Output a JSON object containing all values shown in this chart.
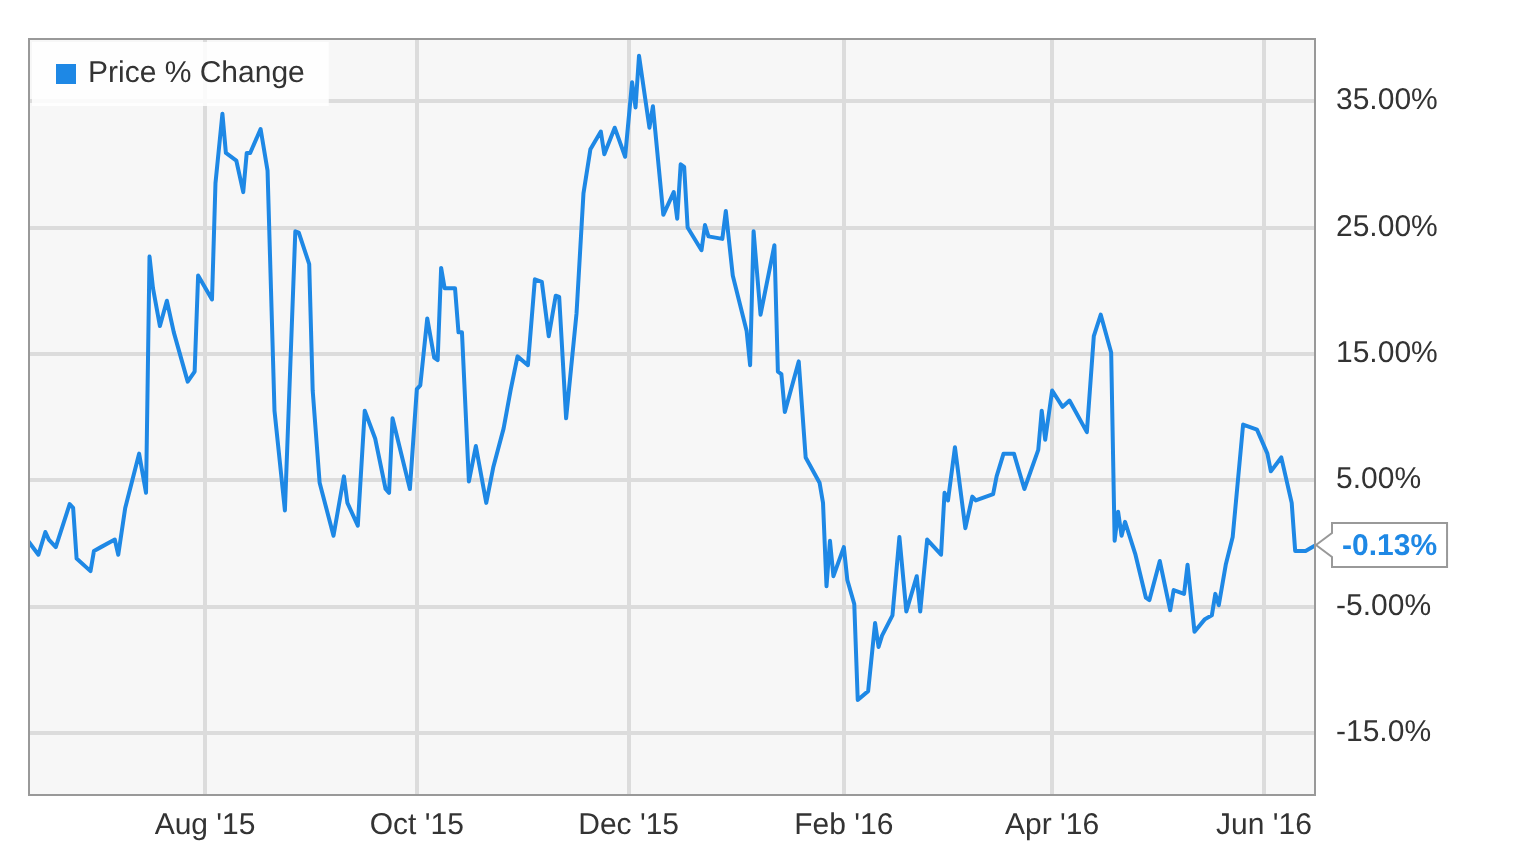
{
  "chart_data": {
    "type": "line",
    "x": [
      "2015-06-11",
      "2015-06-14",
      "2015-06-16",
      "2015-06-17",
      "2015-06-19",
      "2015-06-23",
      "2015-06-24",
      "2015-06-25",
      "2015-06-29",
      "2015-06-30",
      "2015-07-02",
      "2015-07-06",
      "2015-07-07",
      "2015-07-09",
      "2015-07-13",
      "2015-07-15",
      "2015-07-16",
      "2015-07-17",
      "2015-07-19",
      "2015-07-21",
      "2015-07-23",
      "2015-07-27",
      "2015-07-29",
      "2015-07-30",
      "2015-08-03",
      "2015-08-04",
      "2015-08-06",
      "2015-08-07",
      "2015-08-10",
      "2015-08-12",
      "2015-08-13",
      "2015-08-14",
      "2015-08-17",
      "2015-08-19",
      "2015-08-21",
      "2015-08-24",
      "2015-08-27",
      "2015-08-28",
      "2015-08-31",
      "2015-09-01",
      "2015-09-03",
      "2015-09-07",
      "2015-09-10",
      "2015-09-11",
      "2015-09-14",
      "2015-09-16",
      "2015-09-19",
      "2015-09-22",
      "2015-09-23",
      "2015-09-24",
      "2015-09-29",
      "2015-10-01",
      "2015-10-02",
      "2015-10-04",
      "2015-10-06",
      "2015-10-07",
      "2015-10-08",
      "2015-10-09",
      "2015-10-12",
      "2015-10-13",
      "2015-10-14",
      "2015-10-16",
      "2015-10-18",
      "2015-10-21",
      "2015-10-23",
      "2015-10-26",
      "2015-10-28",
      "2015-10-30",
      "2015-11-02",
      "2015-11-04",
      "2015-11-06",
      "2015-11-08",
      "2015-11-10",
      "2015-11-11",
      "2015-11-13",
      "2015-11-16",
      "2015-11-18",
      "2015-11-20",
      "2015-11-23",
      "2015-11-24",
      "2015-11-27",
      "2015-11-30",
      "2015-12-02",
      "2015-12-03",
      "2015-12-04",
      "2015-12-07",
      "2015-12-08",
      "2015-12-11",
      "2015-12-14",
      "2015-12-15",
      "2015-12-16",
      "2015-12-17",
      "2015-12-18",
      "2015-12-22",
      "2015-12-23",
      "2015-12-24",
      "2015-12-28",
      "2015-12-29",
      "2015-12-31",
      "2016-01-04",
      "2016-01-05",
      "2016-01-06",
      "2016-01-08",
      "2016-01-12",
      "2016-01-13",
      "2016-01-14",
      "2016-01-15",
      "2016-01-19",
      "2016-01-21",
      "2016-01-25",
      "2016-01-26",
      "2016-01-27",
      "2016-01-28",
      "2016-01-29",
      "2016-02-01",
      "2016-02-02",
      "2016-02-04",
      "2016-02-05",
      "2016-02-08",
      "2016-02-10",
      "2016-02-11",
      "2016-02-12",
      "2016-02-15",
      "2016-02-17",
      "2016-02-19",
      "2016-02-22",
      "2016-02-23",
      "2016-02-25",
      "2016-02-29",
      "2016-03-01",
      "2016-03-02",
      "2016-03-04",
      "2016-03-07",
      "2016-03-09",
      "2016-03-10",
      "2016-03-15",
      "2016-03-16",
      "2016-03-18",
      "2016-03-21",
      "2016-03-24",
      "2016-03-28",
      "2016-03-29",
      "2016-03-30",
      "2016-04-01",
      "2016-04-04",
      "2016-04-06",
      "2016-04-11",
      "2016-04-13",
      "2016-04-15",
      "2016-04-18",
      "2016-04-19",
      "2016-04-20",
      "2016-04-21",
      "2016-04-22",
      "2016-04-25",
      "2016-04-28",
      "2016-04-29",
      "2016-05-02",
      "2016-05-05",
      "2016-05-06",
      "2016-05-09",
      "2016-05-10",
      "2016-05-12",
      "2016-05-15",
      "2016-05-17",
      "2016-05-18",
      "2016-05-19",
      "2016-05-21",
      "2016-05-23",
      "2016-05-26",
      "2016-05-30",
      "2016-06-02",
      "2016-06-03",
      "2016-06-06",
      "2016-06-09",
      "2016-06-10",
      "2016-06-13",
      "2016-06-16"
    ],
    "series": [
      {
        "name": "Price % Change",
        "color": "#1e88e5",
        "values": [
          0.2,
          -0.9,
          0.9,
          0.3,
          -0.3,
          3.1,
          2.8,
          -1.2,
          -2.2,
          -0.6,
          -0.3,
          0.3,
          -0.9,
          2.8,
          7.1,
          4.0,
          22.7,
          20.2,
          17.2,
          19.2,
          16.7,
          12.8,
          13.6,
          21.2,
          19.3,
          28.5,
          34.0,
          30.9,
          30.3,
          27.8,
          30.9,
          30.9,
          32.8,
          29.5,
          10.5,
          2.6,
          24.7,
          24.6,
          22.1,
          12.1,
          4.8,
          0.6,
          5.3,
          3.2,
          1.4,
          10.5,
          8.3,
          4.3,
          4.0,
          9.9,
          4.3,
          12.2,
          12.5,
          17.8,
          14.7,
          14.5,
          21.8,
          20.2,
          20.2,
          16.7,
          16.7,
          4.9,
          7.7,
          3.2,
          6.0,
          9.1,
          12.1,
          14.8,
          14.1,
          20.9,
          20.7,
          16.4,
          19.6,
          19.5,
          9.9,
          18.2,
          27.7,
          31.2,
          32.6,
          30.8,
          32.9,
          30.6,
          36.5,
          34.5,
          38.6,
          32.9,
          34.6,
          26.0,
          27.8,
          25.7,
          30.0,
          29.8,
          25.0,
          23.2,
          25.2,
          24.3,
          24.1,
          26.3,
          21.2,
          16.8,
          14.1,
          24.7,
          18.1,
          23.6,
          13.6,
          13.4,
          10.4,
          14.4,
          6.8,
          4.8,
          3.2,
          -3.4,
          0.2,
          -2.6,
          -0.3,
          -2.9,
          -4.8,
          -12.4,
          -11.7,
          -6.3,
          -8.2,
          -7.3,
          -5.7,
          0.5,
          -5.4,
          -2.6,
          -5.4,
          0.3,
          -0.9,
          4.0,
          3.4,
          7.6,
          1.2,
          3.7,
          3.4,
          3.9,
          5.3,
          7.1,
          7.1,
          4.3,
          7.4,
          10.5,
          8.2,
          12.1,
          10.8,
          11.3,
          8.8,
          16.4,
          18.1,
          15.1,
          0.2,
          2.5,
          0.6,
          1.7,
          -0.9,
          -4.3,
          -4.5,
          -1.4,
          -5.3,
          -3.7,
          -4.0,
          -1.7,
          -7.0,
          -6.0,
          -5.7,
          -4.0,
          -4.9,
          -1.7,
          0.5,
          9.4,
          9.0,
          7.1,
          5.7,
          6.8,
          3.2,
          -0.6,
          -0.6,
          -0.13
        ],
        "value_labels": [
          null,
          null,
          null,
          null,
          null,
          null,
          null,
          null,
          null,
          null,
          null,
          null,
          null,
          null,
          null,
          null,
          null,
          null,
          null,
          null,
          null,
          null,
          null,
          null,
          null,
          null,
          null,
          null,
          null,
          null,
          null,
          null,
          null,
          null,
          null,
          null,
          null,
          null,
          null,
          null,
          null,
          null,
          null,
          null,
          null,
          null,
          null,
          null,
          null,
          null,
          null,
          null,
          null,
          null,
          null,
          null,
          null,
          null,
          null,
          null,
          null,
          null,
          null,
          null,
          null,
          null,
          null,
          null,
          null,
          null,
          null,
          null,
          null,
          null,
          null,
          null,
          null,
          null,
          null,
          null,
          null,
          null,
          null,
          null,
          null,
          null,
          null,
          null,
          null,
          null,
          null,
          null,
          null,
          null,
          null,
          null,
          null,
          null,
          null,
          null,
          null,
          null,
          null,
          null,
          null,
          null,
          null,
          null,
          null,
          null,
          null,
          null,
          null,
          null,
          null,
          null,
          null,
          null,
          null,
          null,
          null,
          null,
          null,
          null,
          null,
          null,
          null,
          null,
          null,
          null,
          null,
          null,
          null,
          null,
          null,
          null,
          null,
          null,
          null,
          null,
          null,
          null,
          null,
          null,
          null,
          null,
          null,
          null,
          null,
          null,
          null,
          null,
          null,
          null,
          null,
          null,
          null,
          null,
          null,
          null,
          null,
          null,
          null,
          null,
          null,
          null,
          null,
          null,
          null,
          null,
          null,
          null,
          null,
          null,
          null,
          null,
          null,
          "-0.13%"
        ]
      }
    ],
    "xlim": [
      "2015-06-11",
      "2016-06-16"
    ],
    "xticks": [
      {
        "value": "2015-08-01",
        "label": "Aug '15"
      },
      {
        "value": "2015-10-01",
        "label": "Oct '15"
      },
      {
        "value": "2015-12-01",
        "label": "Dec '15"
      },
      {
        "value": "2016-02-01",
        "label": "Feb '16"
      },
      {
        "value": "2016-04-01",
        "label": "Apr '16"
      },
      {
        "value": "2016-06-01",
        "label": "Jun '16"
      }
    ],
    "ylim": [
      -20,
      40
    ],
    "yticks": [
      {
        "value": -15,
        "label": "-15.0%"
      },
      {
        "value": -5,
        "label": "-5.00%"
      },
      {
        "value": 5,
        "label": "5.00%"
      },
      {
        "value": 15,
        "label": "15.00%"
      },
      {
        "value": 25,
        "label": "25.00%"
      },
      {
        "value": 35,
        "label": "35.00%"
      }
    ],
    "grid": true,
    "legend": "top left",
    "marker": "none",
    "line_style": "solid"
  }
}
